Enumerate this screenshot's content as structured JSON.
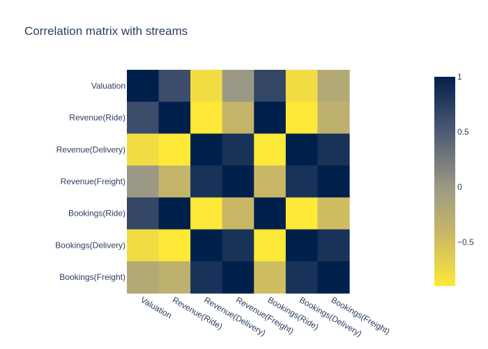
{
  "chart_data": {
    "type": "heatmap",
    "title": "Correlation matrix with streams",
    "labels": [
      "Valuation",
      "Revenue(Ride)",
      "Revenue(Delivery)",
      "Revenue(Freight)",
      "Bookings(Ride)",
      "Bookings(Delivery)",
      "Bookings(Freight)"
    ],
    "z": [
      [
        1.0,
        0.62,
        -0.78,
        0.0,
        0.68,
        -0.78,
        -0.22
      ],
      [
        0.62,
        1.0,
        -0.92,
        -0.38,
        1.0,
        -0.9,
        -0.32
      ],
      [
        -0.78,
        -0.92,
        1.0,
        0.85,
        -0.98,
        1.0,
        0.85
      ],
      [
        0.0,
        -0.38,
        0.85,
        1.0,
        -0.42,
        0.85,
        1.0
      ],
      [
        0.68,
        1.0,
        -0.98,
        -0.42,
        1.0,
        -0.96,
        -0.48
      ],
      [
        -0.78,
        -0.9,
        1.0,
        0.85,
        -0.96,
        1.0,
        0.85
      ],
      [
        -0.22,
        -0.32,
        0.85,
        1.0,
        -0.48,
        0.85,
        1.0
      ]
    ],
    "zmin": -0.9,
    "zmax": 1.0,
    "colorscale": [
      "#fee838",
      "#9c9a85",
      "#00204c"
    ],
    "colorbar_ticks": [
      1,
      0.5,
      0,
      -0.5
    ],
    "colorbar_tick_labels": [
      "1",
      "0.5",
      "0",
      "−0.5"
    ],
    "grid": false,
    "legend": "colorbar-right"
  }
}
